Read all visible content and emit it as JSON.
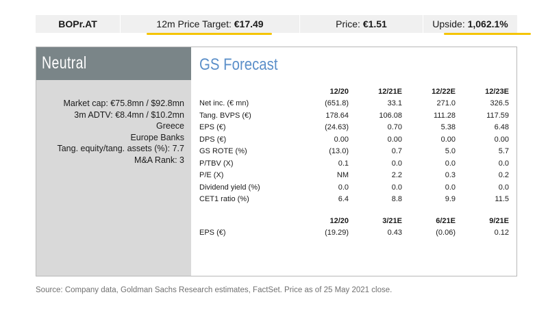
{
  "topbar": {
    "ticker": "BOPr.AT",
    "target_label": "12m Price Target: ",
    "target_value": "€17.49",
    "price_label": "Price: ",
    "price_value": "€1.51",
    "upside_label": "Upside: ",
    "upside_value": "1,062.1%",
    "highlight_color": "#f5c400"
  },
  "sidebar": {
    "rating": "Neutral",
    "metrics": [
      "Market cap: €75.8mn / $92.8mn",
      "3m ADTV: €8.4mn / $10.2mn",
      "Greece",
      "Europe Banks",
      "Tang. equity/tang. assets (%): 7.7",
      "M&A Rank: 3"
    ]
  },
  "forecast": {
    "title": "GS Forecast",
    "annual": {
      "headers": [
        "12/20",
        "12/21E",
        "12/22E",
        "12/23E"
      ],
      "rows": [
        {
          "label": "Net inc. (€ mn)",
          "values": [
            "(651.8)",
            "33.1",
            "271.0",
            "326.5"
          ]
        },
        {
          "label": "Tang. BVPS (€)",
          "values": [
            "178.64",
            "106.08",
            "111.28",
            "117.59"
          ]
        },
        {
          "label": "EPS (€)",
          "values": [
            "(24.63)",
            "0.70",
            "5.38",
            "6.48"
          ]
        },
        {
          "label": "DPS (€)",
          "values": [
            "0.00",
            "0.00",
            "0.00",
            "0.00"
          ]
        },
        {
          "label": "GS ROTE (%)",
          "values": [
            "(13.0)",
            "0.7",
            "5.0",
            "5.7"
          ]
        },
        {
          "label": "P/TBV (X)",
          "values": [
            "0.1",
            "0.0",
            "0.0",
            "0.0"
          ]
        },
        {
          "label": "P/E (X)",
          "values": [
            "NM",
            "2.2",
            "0.3",
            "0.2"
          ]
        },
        {
          "label": "Dividend yield (%)",
          "values": [
            "0.0",
            "0.0",
            "0.0",
            "0.0"
          ]
        },
        {
          "label": "CET1 ratio (%)",
          "values": [
            "6.4",
            "8.8",
            "9.9",
            "11.5"
          ]
        }
      ]
    },
    "quarterly": {
      "headers": [
        "12/20",
        "3/21E",
        "6/21E",
        "9/21E"
      ],
      "rows": [
        {
          "label": "EPS (€)",
          "values": [
            "(19.29)",
            "0.43",
            "(0.06)",
            "0.12"
          ]
        }
      ]
    }
  },
  "source": "Source: Company data, Goldman Sachs Research estimates, FactSet. Price as of 25 May 2021 close."
}
